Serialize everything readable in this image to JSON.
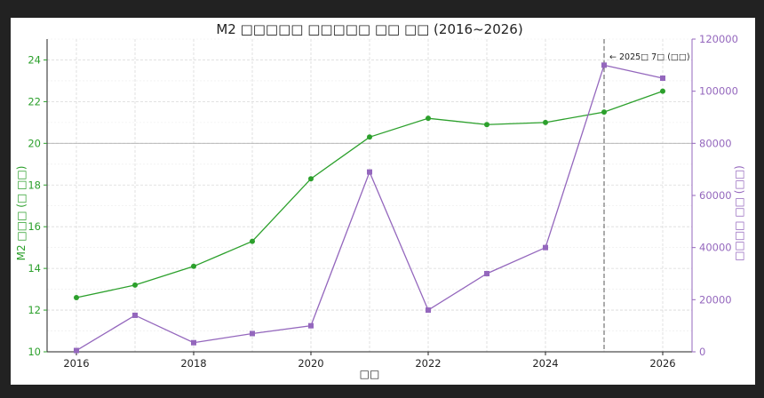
{
  "chart_data": {
    "type": "line",
    "title": "M2 □□□□□ □□□□□ □□ □□ (2016~2026)",
    "xlabel": "□□",
    "ylabel_left": "M2 □□□ (□ □□)",
    "ylabel_right": "□□□□ □□ (□□)",
    "x": [
      2016,
      2017,
      2018,
      2019,
      2020,
      2021,
      2022,
      2023,
      2024,
      2025,
      2026
    ],
    "x_ticks": [
      "2016",
      "2018",
      "2020",
      "2022",
      "2024",
      "2026"
    ],
    "xlim": [
      2015.5,
      2026.5
    ],
    "ylim_left": [
      10,
      25
    ],
    "yticks_left": [
      "10",
      "12",
      "14",
      "16",
      "18",
      "20",
      "22",
      "24"
    ],
    "ylim_right": [
      0,
      120000
    ],
    "yticks_right": [
      "0",
      "20000",
      "40000",
      "60000",
      "80000",
      "100000",
      "120000"
    ],
    "grid": true,
    "series": [
      {
        "axis": "left",
        "color": "#2ca02c",
        "marker": "circle",
        "values": [
          12.6,
          13.2,
          14.1,
          15.3,
          18.3,
          20.3,
          21.2,
          20.9,
          21.0,
          21.5,
          22.5
        ]
      },
      {
        "axis": "right",
        "color": "#9467bd",
        "marker": "square",
        "values": [
          500,
          14000,
          3500,
          7000,
          10000,
          69000,
          16000,
          30000,
          40000,
          110000,
          105000
        ]
      }
    ],
    "annotation": {
      "x": 2025,
      "text": "← 2025□ 7□ (□□)"
    },
    "reference_line_left": 20
  }
}
